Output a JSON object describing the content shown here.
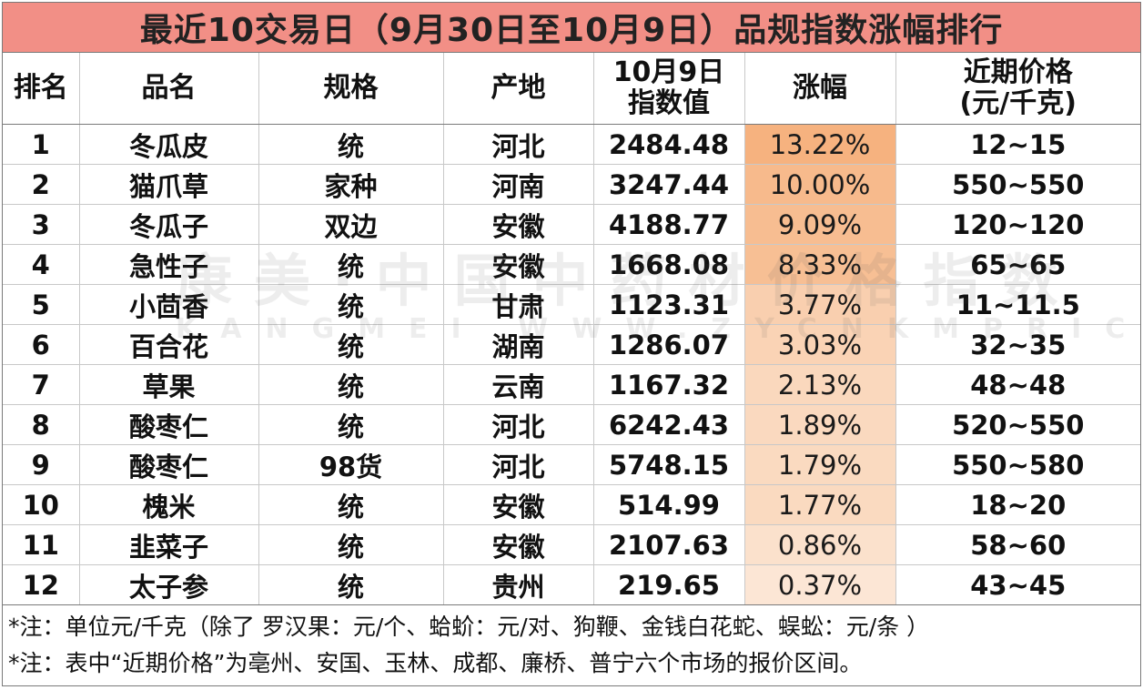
{
  "title": "最近10交易日（9月30日至10月9日）品规指数涨幅排行",
  "headers": {
    "rank": "排名",
    "name": "品名",
    "spec": "规格",
    "origin": "产地",
    "index_line1": "10月9日",
    "index_line2": "指数值",
    "rise": "涨幅",
    "price_line1": "近期价格",
    "price_line2": "(元/千克)"
  },
  "rows": [
    {
      "rank": "1",
      "name": "冬瓜皮",
      "spec": "统",
      "origin": "河北",
      "index": "2484.48",
      "rise": "13.22%",
      "rise_value": 13.22,
      "price": "12~15"
    },
    {
      "rank": "2",
      "name": "猫爪草",
      "spec": "家种",
      "origin": "河南",
      "index": "3247.44",
      "rise": "10.00%",
      "rise_value": 10.0,
      "price": "550~550"
    },
    {
      "rank": "3",
      "name": "冬瓜子",
      "spec": "双边",
      "origin": "安徽",
      "index": "4188.77",
      "rise": "9.09%",
      "rise_value": 9.09,
      "price": "120~120"
    },
    {
      "rank": "4",
      "name": "急性子",
      "spec": "统",
      "origin": "安徽",
      "index": "1668.08",
      "rise": "8.33%",
      "rise_value": 8.33,
      "price": "65~65"
    },
    {
      "rank": "5",
      "name": "小茴香",
      "spec": "统",
      "origin": "甘肃",
      "index": "1123.31",
      "rise": "3.77%",
      "rise_value": 3.77,
      "price": "11~11.5"
    },
    {
      "rank": "6",
      "name": "百合花",
      "spec": "统",
      "origin": "湖南",
      "index": "1286.07",
      "rise": "3.03%",
      "rise_value": 3.03,
      "price": "32~35"
    },
    {
      "rank": "7",
      "name": "草果",
      "spec": "统",
      "origin": "云南",
      "index": "1167.32",
      "rise": "2.13%",
      "rise_value": 2.13,
      "price": "48~48"
    },
    {
      "rank": "8",
      "name": "酸枣仁",
      "spec": "统",
      "origin": "河北",
      "index": "6242.43",
      "rise": "1.89%",
      "rise_value": 1.89,
      "price": "520~550"
    },
    {
      "rank": "9",
      "name": "酸枣仁",
      "spec": "98货",
      "origin": "河北",
      "index": "5748.15",
      "rise": "1.79%",
      "rise_value": 1.79,
      "price": "550~580"
    },
    {
      "rank": "10",
      "name": "槐米",
      "spec": "统",
      "origin": "安徽",
      "index": "514.99",
      "rise": "1.77%",
      "rise_value": 1.77,
      "price": "18~20"
    },
    {
      "rank": "11",
      "name": "韭菜子",
      "spec": "统",
      "origin": "安徽",
      "index": "2107.63",
      "rise": "0.86%",
      "rise_value": 0.86,
      "price": "58~60"
    },
    {
      "rank": "12",
      "name": "太子参",
      "spec": "统",
      "origin": "贵州",
      "index": "219.65",
      "rise": "0.37%",
      "rise_value": 0.37,
      "price": "43~45"
    }
  ],
  "notes": [
    "*注：单位元/千克（除了 罗汉果：元/个、蛤蚧：元/对、狗鞭、金钱白花蛇、蜈蚣：元/条 ）",
    "*注：表中“近期价格”为亳州、安国、玉林、成都、廉桥、普宁六个市场的报价区间。"
  ],
  "watermark": {
    "line1": "康美·中国中药材价格指数",
    "line2": "KANGMEI WWW.ZYCNKMPRICE.COM"
  },
  "colors": {
    "title_bg": "#f28f86",
    "rise_high": "#f6b27f",
    "rise_low": "#fdf1e6"
  }
}
